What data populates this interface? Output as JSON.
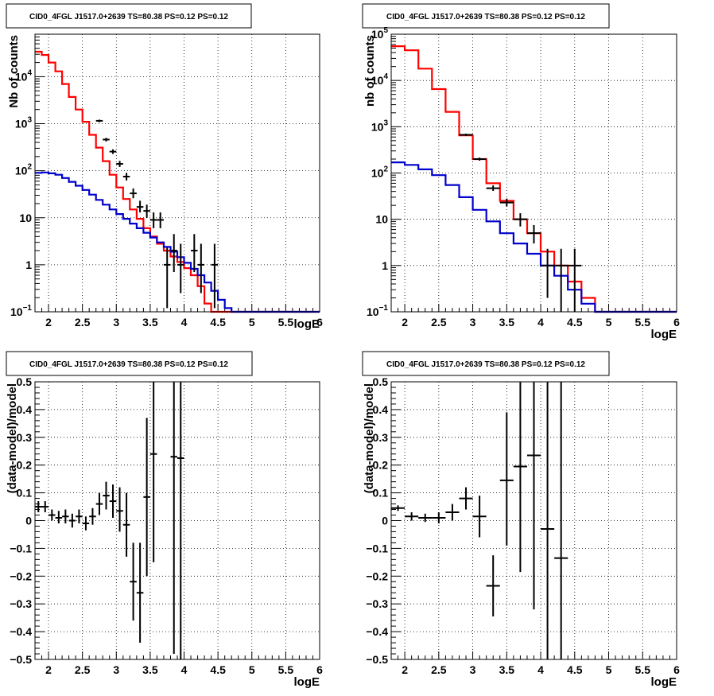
{
  "colors": {
    "data": "#000000",
    "total_model": "#ff0000",
    "source_model": "#0000cc",
    "grid": "#000000"
  },
  "chart_data": [
    {
      "type": "line",
      "title": "CID0_4FGL J1517.0+2639 TS=80.38 PS=0.12 PS=0.12",
      "xlabel": "logE",
      "ylabel": "Nb of counts",
      "log_y": true,
      "xlim": [
        1.8,
        6.0
      ],
      "ylim": [
        0.1,
        80000
      ],
      "grid": true,
      "x_ticks": [
        2,
        2.5,
        3,
        3.5,
        4,
        4.5,
        5,
        5.5,
        6
      ],
      "x_tick_labels": [
        "2",
        "2.5",
        "3",
        "3.5",
        "4",
        "4.5",
        "5",
        "5.5",
        "6"
      ],
      "y_ticks": [
        0.1,
        1,
        10,
        100,
        1000,
        10000
      ],
      "y_tick_labels": [
        {
          "base": "10",
          "sup": "−1"
        },
        {
          "base": "1",
          "sup": ""
        },
        {
          "base": "10",
          "sup": ""
        },
        {
          "base": "10",
          "sup": "2"
        },
        {
          "base": "10",
          "sup": "3"
        },
        {
          "base": "10",
          "sup": "4"
        }
      ],
      "bin_width": 0.1,
      "step_edges_start": 1.8,
      "series": [
        {
          "role": "total_model",
          "values": [
            34000,
            29000,
            20000,
            13000,
            7000,
            3700,
            2000,
            1100,
            580,
            310,
            160,
            82,
            44,
            25,
            15,
            9.5,
            6,
            4,
            2.8,
            2,
            1.5,
            1.15,
            0.85,
            0.6,
            0.35,
            0.15,
            0.1,
            0.1,
            0.1,
            0.1,
            0.1,
            0.1,
            0.1,
            0.1,
            0.1,
            0.1,
            0.1,
            0.1,
            0.1,
            0.1,
            0.1,
            0.1
          ]
        },
        {
          "role": "source_model",
          "values": [
            90,
            92,
            88,
            82,
            70,
            58,
            48,
            39,
            31,
            24,
            19,
            15,
            12,
            9.5,
            7.5,
            6,
            4.8,
            3.8,
            3,
            2.4,
            1.9,
            1.45,
            1.1,
            0.82,
            0.6,
            0.42,
            0.28,
            0.18,
            0.12,
            0.1,
            0.1,
            0.1,
            0.1,
            0.1,
            0.1,
            0.1,
            0.1,
            0.1,
            0.1,
            0.1,
            0.1,
            0.1
          ]
        }
      ],
      "points": [
        {
          "x": 2.75,
          "y": 1150,
          "lo": 1080,
          "hi": 1220
        },
        {
          "x": 2.85,
          "y": 460,
          "lo": 420,
          "hi": 500
        },
        {
          "x": 2.95,
          "y": 255,
          "lo": 228,
          "hi": 285
        },
        {
          "x": 3.05,
          "y": 140,
          "lo": 120,
          "hi": 162
        },
        {
          "x": 3.15,
          "y": 75,
          "lo": 62,
          "hi": 90
        },
        {
          "x": 3.25,
          "y": 33,
          "lo": 26,
          "hi": 42
        },
        {
          "x": 3.35,
          "y": 17,
          "lo": 13,
          "hi": 23
        },
        {
          "x": 3.45,
          "y": 14,
          "lo": 10,
          "hi": 19
        },
        {
          "x": 3.55,
          "y": 9,
          "lo": 6,
          "hi": 13
        },
        {
          "x": 3.65,
          "y": 9,
          "lo": 6,
          "hi": 13
        },
        {
          "x": 3.75,
          "y": 1,
          "lo": 0.12,
          "hi": 2.3
        },
        {
          "x": 3.85,
          "y": 2,
          "lo": 0.7,
          "hi": 4.5
        },
        {
          "x": 3.95,
          "y": 1,
          "lo": 0.25,
          "hi": 2.8
        },
        {
          "x": 4.15,
          "y": 2,
          "lo": 0.7,
          "hi": 4.5
        },
        {
          "x": 4.25,
          "y": 1,
          "lo": 0.25,
          "hi": 2.8
        },
        {
          "x": 4.45,
          "y": 1,
          "lo": 0.12,
          "hi": 2.8
        }
      ]
    },
    {
      "type": "line",
      "title": "CID0_4FGL J1517.0+2639 TS=80.38 PS=0.12 PS=0.12",
      "xlabel": "logE",
      "ylabel": "nb of counts",
      "log_y": true,
      "xlim": [
        1.8,
        6.0
      ],
      "ylim": [
        0.1,
        100000
      ],
      "grid": true,
      "x_ticks": [
        2,
        2.5,
        3,
        3.5,
        4,
        4.5,
        5,
        5.5,
        6
      ],
      "x_tick_labels": [
        "2",
        "2.5",
        "3",
        "3.5",
        "4",
        "4.5",
        "5",
        "5.5",
        "6"
      ],
      "y_ticks": [
        0.1,
        1,
        10,
        100,
        1000,
        10000,
        100000
      ],
      "y_tick_labels": [
        {
          "base": "10",
          "sup": "−1"
        },
        {
          "base": "1",
          "sup": ""
        },
        {
          "base": "10",
          "sup": ""
        },
        {
          "base": "10",
          "sup": "2"
        },
        {
          "base": "10",
          "sup": "3"
        },
        {
          "base": "10",
          "sup": "4"
        },
        {
          "base": "10",
          "sup": "5"
        }
      ],
      "bin_width": 0.2,
      "step_edges_start": 1.8,
      "series": [
        {
          "role": "total_model",
          "values": [
            55000,
            45000,
            18000,
            6500,
            2100,
            650,
            200,
            60,
            25,
            10,
            5,
            2,
            1,
            0.45,
            0.2,
            0.1,
            0.1,
            0.1,
            0.1,
            0.1,
            0.1
          ]
        },
        {
          "role": "source_model",
          "values": [
            170,
            150,
            120,
            90,
            55,
            30,
            16,
            9,
            5,
            3,
            1.8,
            1,
            0.6,
            0.3,
            0.15,
            0.1,
            0.1,
            0.1,
            0.1,
            0.1,
            0.1
          ]
        }
      ],
      "points": [
        {
          "x": 2.9,
          "y": 670,
          "lo": 630,
          "hi": 710
        },
        {
          "x": 3.1,
          "y": 200,
          "lo": 185,
          "hi": 215
        },
        {
          "x": 3.3,
          "y": 47,
          "lo": 41,
          "hi": 54
        },
        {
          "x": 3.5,
          "y": 23,
          "lo": 19,
          "hi": 28
        },
        {
          "x": 3.7,
          "y": 10,
          "lo": 7,
          "hi": 13.5
        },
        {
          "x": 3.9,
          "y": 5,
          "lo": 3,
          "hi": 7.5
        },
        {
          "x": 4.1,
          "y": 1,
          "lo": 0.2,
          "hi": 2.3
        },
        {
          "x": 4.3,
          "y": 1,
          "lo": 0.1,
          "hi": 2.3
        },
        {
          "x": 4.5,
          "y": 1,
          "lo": 0.1,
          "hi": 2.3
        }
      ]
    },
    {
      "type": "scatter",
      "title": "CID0_4FGL J1517.0+2639 TS=80.38 PS=0.12 PS=0.12",
      "xlabel": "logE",
      "ylabel": "(data-model)/model",
      "log_y": false,
      "xlim": [
        1.8,
        6.0
      ],
      "ylim": [
        -0.5,
        0.5
      ],
      "grid": true,
      "x_ticks": [
        2,
        2.5,
        3,
        3.5,
        4,
        4.5,
        5,
        5.5,
        6
      ],
      "x_tick_labels": [
        "2",
        "2.5",
        "3",
        "3.5",
        "4",
        "4.5",
        "5",
        "5.5",
        "6"
      ],
      "y_ticks": [
        -0.5,
        -0.4,
        -0.3,
        -0.2,
        -0.1,
        0,
        0.1,
        0.2,
        0.3,
        0.4,
        0.5
      ],
      "y_tick_labels": [
        "−0.5",
        "−0.4",
        "−0.3",
        "−0.2",
        "−0.1",
        "0",
        "0.1",
        "0.2",
        "0.3",
        "0.4",
        "0.5"
      ],
      "xerr": 0.05,
      "points": [
        {
          "x": 1.85,
          "y": 0.05,
          "lo": 0.03,
          "hi": 0.07
        },
        {
          "x": 1.95,
          "y": 0.05,
          "lo": 0.03,
          "hi": 0.07
        },
        {
          "x": 2.05,
          "y": 0.02,
          "lo": 0.0,
          "hi": 0.04
        },
        {
          "x": 2.15,
          "y": 0.01,
          "lo": -0.01,
          "hi": 0.035
        },
        {
          "x": 2.25,
          "y": 0.015,
          "lo": -0.01,
          "hi": 0.04
        },
        {
          "x": 2.35,
          "y": 0.0,
          "lo": -0.025,
          "hi": 0.025
        },
        {
          "x": 2.45,
          "y": 0.015,
          "lo": -0.01,
          "hi": 0.04
        },
        {
          "x": 2.55,
          "y": -0.01,
          "lo": -0.035,
          "hi": 0.015
        },
        {
          "x": 2.65,
          "y": 0.015,
          "lo": -0.015,
          "hi": 0.045
        },
        {
          "x": 2.75,
          "y": 0.06,
          "lo": 0.02,
          "hi": 0.1
        },
        {
          "x": 2.85,
          "y": 0.09,
          "lo": 0.04,
          "hi": 0.14
        },
        {
          "x": 2.95,
          "y": 0.07,
          "lo": 0.01,
          "hi": 0.13
        },
        {
          "x": 3.05,
          "y": 0.035,
          "lo": -0.04,
          "hi": 0.12
        },
        {
          "x": 3.15,
          "y": -0.015,
          "lo": -0.13,
          "hi": 0.1
        },
        {
          "x": 3.25,
          "y": -0.22,
          "lo": -0.36,
          "hi": -0.08
        },
        {
          "x": 3.35,
          "y": -0.26,
          "lo": -0.44,
          "hi": -0.08
        },
        {
          "x": 3.45,
          "y": 0.085,
          "lo": -0.2,
          "hi": 0.37
        },
        {
          "x": 3.55,
          "y": 0.24,
          "lo": -0.15,
          "hi": 0.5
        },
        {
          "x": 3.85,
          "y": 0.23,
          "lo": -0.48,
          "hi": 0.5
        },
        {
          "x": 3.95,
          "y": 0.225,
          "lo": -0.5,
          "hi": 0.5
        }
      ]
    },
    {
      "type": "scatter",
      "title": "CID0_4FGL J1517.0+2639 TS=80.38 PS=0.12 PS=0.12",
      "xlabel": "logE",
      "ylabel": "(data-model)/model",
      "log_y": false,
      "xlim": [
        1.8,
        6.0
      ],
      "ylim": [
        -0.5,
        0.5
      ],
      "grid": true,
      "x_ticks": [
        2,
        2.5,
        3,
        3.5,
        4,
        4.5,
        5,
        5.5,
        6
      ],
      "x_tick_labels": [
        "2",
        "2.5",
        "3",
        "3.5",
        "4",
        "4.5",
        "5",
        "5.5",
        "6"
      ],
      "y_ticks": [
        -0.5,
        -0.4,
        -0.3,
        -0.2,
        -0.1,
        0,
        0.1,
        0.2,
        0.3,
        0.4,
        0.5
      ],
      "y_tick_labels": [
        "−0.5",
        "−0.4",
        "−0.3",
        "−0.2",
        "−0.1",
        "0",
        "0.1",
        "0.2",
        "0.3",
        "0.4",
        "0.5"
      ],
      "xerr": 0.1,
      "points": [
        {
          "x": 1.9,
          "y": 0.045,
          "lo": 0.035,
          "hi": 0.055
        },
        {
          "x": 2.1,
          "y": 0.015,
          "lo": 0.0,
          "hi": 0.03
        },
        {
          "x": 2.3,
          "y": 0.01,
          "lo": -0.005,
          "hi": 0.025
        },
        {
          "x": 2.5,
          "y": 0.01,
          "lo": -0.01,
          "hi": 0.03
        },
        {
          "x": 2.7,
          "y": 0.03,
          "lo": 0.0,
          "hi": 0.06
        },
        {
          "x": 2.9,
          "y": 0.08,
          "lo": 0.04,
          "hi": 0.12
        },
        {
          "x": 3.1,
          "y": 0.015,
          "lo": -0.06,
          "hi": 0.09
        },
        {
          "x": 3.3,
          "y": -0.235,
          "lo": -0.345,
          "hi": -0.125
        },
        {
          "x": 3.5,
          "y": 0.145,
          "lo": -0.09,
          "hi": 0.39
        },
        {
          "x": 3.7,
          "y": 0.195,
          "lo": -0.185,
          "hi": 0.5
        },
        {
          "x": 3.9,
          "y": 0.235,
          "lo": -0.32,
          "hi": 0.5
        },
        {
          "x": 4.1,
          "y": -0.03,
          "lo": -0.5,
          "hi": 0.5
        },
        {
          "x": 4.3,
          "y": -0.135,
          "lo": -0.5,
          "hi": 0.5
        }
      ]
    }
  ]
}
